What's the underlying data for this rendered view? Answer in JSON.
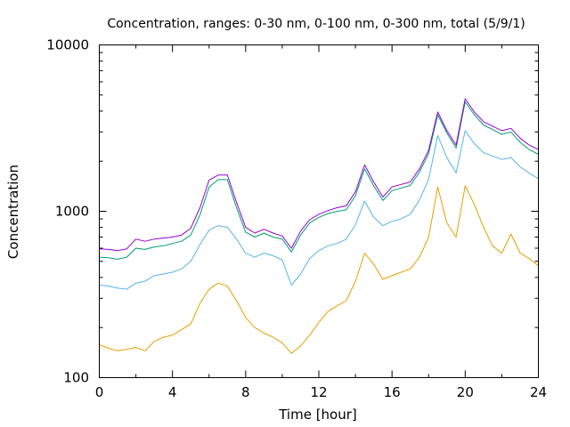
{
  "chart_data": {
    "type": "line",
    "title": "Concentration, ranges: 0-30 nm, 0-100 nm, 0-300 nm, total (5/9/1)",
    "xlabel": "Time [hour]",
    "ylabel": "Concentration",
    "xlim": [
      0,
      24
    ],
    "ylim": [
      100,
      10000
    ],
    "yscale": "log",
    "grid": false,
    "legend": "none",
    "xticks": [
      "0",
      "4",
      "8",
      "12",
      "16",
      "20",
      "24"
    ],
    "yticks": [
      "100",
      "1000",
      "10000"
    ],
    "x": [
      0,
      0.5,
      1,
      1.5,
      2,
      2.5,
      3,
      3.5,
      4,
      4.5,
      5,
      5.5,
      6,
      6.5,
      7,
      7.5,
      8,
      8.5,
      9,
      9.5,
      10,
      10.5,
      11,
      11.5,
      12,
      12.5,
      13,
      13.5,
      14,
      14.5,
      15,
      15.5,
      16,
      16.5,
      17,
      17.5,
      18,
      18.5,
      19,
      19.5,
      20,
      20.5,
      21,
      21.5,
      22,
      22.5,
      23,
      23.5,
      24
    ],
    "series": [
      {
        "color": "#e69f00",
        "values": [
          158,
          150,
          145,
          148,
          152,
          145,
          165,
          175,
          180,
          195,
          210,
          280,
          340,
          370,
          355,
          290,
          230,
          200,
          185,
          175,
          162,
          140,
          155,
          180,
          215,
          250,
          270,
          290,
          380,
          560,
          480,
          390,
          410,
          430,
          450,
          530,
          700,
          1400,
          850,
          700,
          1420,
          1100,
          800,
          620,
          560,
          730,
          560,
          520,
          470
        ]
      },
      {
        "color": "#56b4e9",
        "values": [
          360,
          355,
          345,
          340,
          370,
          380,
          410,
          420,
          430,
          450,
          500,
          630,
          770,
          820,
          800,
          680,
          560,
          530,
          560,
          540,
          510,
          360,
          420,
          520,
          580,
          620,
          640,
          680,
          830,
          1150,
          920,
          820,
          870,
          900,
          960,
          1170,
          1560,
          2850,
          2100,
          1700,
          3050,
          2550,
          2250,
          2150,
          2050,
          2100,
          1850,
          1700,
          1570
        ]
      },
      {
        "color": "#009e73",
        "values": [
          530,
          525,
          515,
          530,
          600,
          590,
          610,
          620,
          640,
          660,
          720,
          950,
          1400,
          1550,
          1550,
          1050,
          750,
          700,
          740,
          700,
          680,
          570,
          720,
          850,
          920,
          970,
          1000,
          1020,
          1240,
          1800,
          1420,
          1160,
          1330,
          1380,
          1430,
          1720,
          2230,
          3800,
          2950,
          2400,
          4550,
          3800,
          3300,
          3100,
          2900,
          3000,
          2600,
          2350,
          2200
        ]
      },
      {
        "color": "#9400d3",
        "values": [
          595,
          590,
          580,
          595,
          680,
          660,
          680,
          690,
          700,
          720,
          790,
          1050,
          1540,
          1650,
          1650,
          1130,
          800,
          740,
          780,
          740,
          710,
          600,
          760,
          890,
          960,
          1010,
          1050,
          1080,
          1310,
          1900,
          1500,
          1220,
          1400,
          1450,
          1500,
          1800,
          2330,
          3950,
          3050,
          2500,
          4750,
          3950,
          3450,
          3250,
          3050,
          3150,
          2750,
          2500,
          2350
        ]
      }
    ]
  }
}
